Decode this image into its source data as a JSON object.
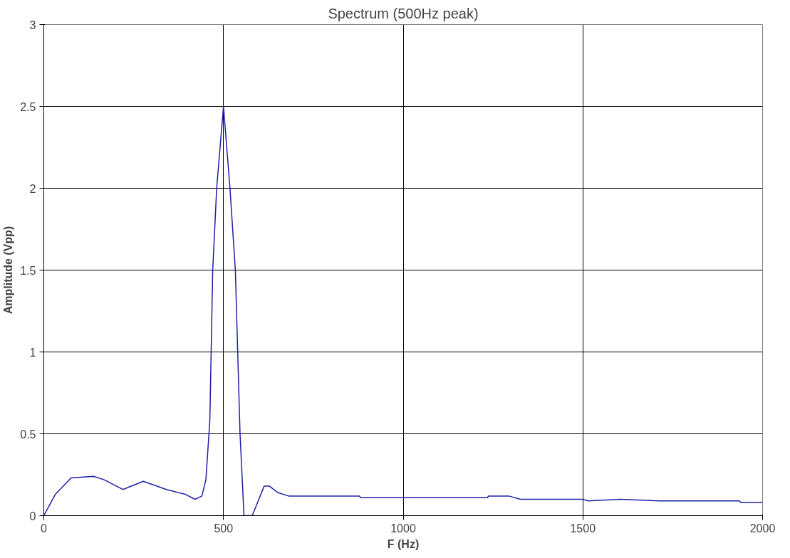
{
  "chart_data": {
    "type": "line",
    "title": "Spectrum (500Hz peak)",
    "xlabel": "F (Hz)",
    "ylabel": "Amplitude (Vpp)",
    "xlim": [
      0,
      2000
    ],
    "xticks": [
      0,
      500,
      1000,
      1500,
      2000
    ],
    "ylim": [
      0,
      3
    ],
    "yticks": [
      0,
      0.5,
      1,
      1.5,
      2,
      2.5,
      3
    ],
    "grid": true,
    "marker": "none",
    "line_style": "solid",
    "series": [
      {
        "color": "#1f1fa8",
        "x": [
          0,
          32,
          76,
          138,
          167,
          220,
          277,
          341,
          394,
          421,
          440,
          451,
          462,
          470,
          481,
          500,
          518,
          533,
          546,
          557,
          580,
          613,
          628,
          652,
          681,
          878,
          882,
          1083,
          1235,
          1237,
          1294,
          1326,
          1500,
          1515,
          1604,
          1713,
          1936,
          1939,
          2000
        ],
        "values": [
          0,
          0.13,
          0.23,
          0.24,
          0.22,
          0.16,
          0.21,
          0.16,
          0.13,
          0.1,
          0.12,
          0.22,
          0.58,
          1.5,
          2,
          2.5,
          2,
          1.5,
          0.5,
          0,
          0,
          0.18,
          0.18,
          0.14,
          0.12,
          0.12,
          0.11,
          0.11,
          0.11,
          0.12,
          0.12,
          0.1,
          0.1,
          0.09,
          0.1,
          0.09,
          0.09,
          0.08,
          0.08
        ]
      }
    ]
  }
}
